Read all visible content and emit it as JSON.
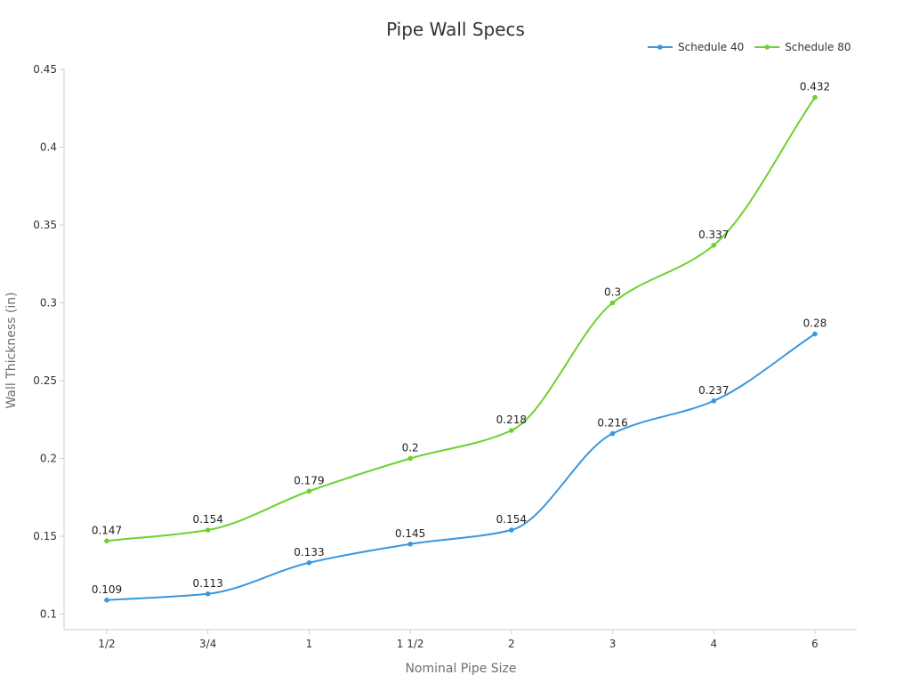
{
  "chart_data": {
    "type": "line",
    "title": "Pipe Wall Specs",
    "xlabel": "Nominal Pipe Size",
    "ylabel": "Wall Thickness (in)",
    "categories": [
      "1/2",
      "3/4",
      "1",
      "1 1/2",
      "2",
      "3",
      "4",
      "6"
    ],
    "ylim": [
      0.09,
      0.45
    ],
    "yticks": [
      0.1,
      0.15,
      0.2,
      0.25,
      0.3,
      0.35,
      0.4,
      0.45
    ],
    "ytick_labels": [
      "0.1",
      "0.15",
      "0.2",
      "0.25",
      "0.3",
      "0.35",
      "0.4",
      "0.45"
    ],
    "grid": false,
    "legend_position": "top-right",
    "series": [
      {
        "name": "Schedule 40",
        "color": "#3a96dd",
        "values": [
          0.109,
          0.113,
          0.133,
          0.145,
          0.154,
          0.216,
          0.237,
          0.28
        ],
        "labels": [
          "0.109",
          "0.113",
          "0.133",
          "0.145",
          "0.154",
          "0.216",
          "0.237",
          "0.28"
        ]
      },
      {
        "name": "Schedule 80",
        "color": "#6dd130",
        "values": [
          0.147,
          0.154,
          0.179,
          0.2,
          0.218,
          0.3,
          0.337,
          0.432
        ],
        "labels": [
          "0.147",
          "0.154",
          "0.179",
          "0.2",
          "0.218",
          "0.3",
          "0.337",
          "0.432"
        ]
      }
    ]
  }
}
